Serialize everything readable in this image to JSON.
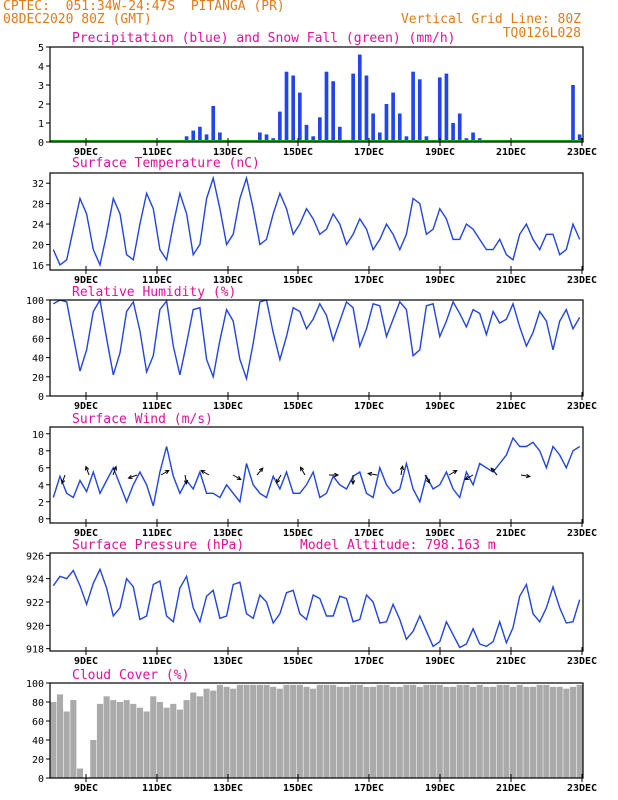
{
  "header": {
    "line1": "CPTEC:  051:34W-24:47S  PITANGA (PR)",
    "line2": "08DEC2020 80Z (GMT)",
    "right1": "Vertical Grid Line: 80Z",
    "right2": "TQ0126L028"
  },
  "colors": {
    "header_text": "#e07b1a",
    "panel_title": "#e0109a",
    "line": "#2244dd",
    "precip": "#2244ee",
    "snow": "#00aa00",
    "cloud": "#aaaaaa"
  },
  "x_ticks": [
    "9DEC",
    "11DEC",
    "13DEC",
    "15DEC",
    "17DEC",
    "19DEC",
    "21DEC",
    "23DEC"
  ],
  "chart_data": [
    {
      "type": "bar",
      "title": "Precipitation (blue) and Snow Fall (green) (mm/h)",
      "ylim": [
        0,
        5
      ],
      "yticks": [
        0,
        1,
        2,
        3,
        4,
        5
      ],
      "x_start": "2020-12-08T08:00Z",
      "x_step_hours": 6,
      "series": [
        {
          "name": "Precipitation",
          "values": [
            0,
            0,
            0,
            0,
            0,
            0,
            0,
            0.1,
            0,
            0,
            0,
            0,
            0,
            0,
            0,
            0,
            0,
            0,
            0,
            0,
            0.3,
            0.6,
            0.8,
            0.4,
            1.9,
            0.5,
            0,
            0,
            0,
            0,
            0,
            0.5,
            0.4,
            0.2,
            1.6,
            3.7,
            3.5,
            2.6,
            0.9,
            0.3,
            1.3,
            3.7,
            3.2,
            0.8,
            0.1,
            3.6,
            4.6,
            3.5,
            1.5,
            0.5,
            2.0,
            2.6,
            1.5,
            0.3,
            3.7,
            3.3,
            0.3,
            0.1,
            3.4,
            3.6,
            1.0,
            1.5,
            0.2,
            0.5,
            0.2,
            0,
            0,
            0,
            0,
            0.1,
            0,
            0,
            0,
            0,
            0,
            0,
            0,
            0,
            3.0,
            0.4
          ]
        },
        {
          "name": "Snow Fall",
          "values": [
            0,
            0,
            0,
            0,
            0,
            0,
            0,
            0,
            0,
            0,
            0,
            0,
            0,
            0,
            0,
            0,
            0,
            0,
            0,
            0,
            0,
            0,
            0,
            0,
            0,
            0,
            0,
            0,
            0,
            0,
            0,
            0,
            0,
            0,
            0,
            0,
            0,
            0,
            0,
            0,
            0,
            0,
            0,
            0,
            0,
            0,
            0,
            0,
            0,
            0,
            0,
            0,
            0,
            0,
            0,
            0,
            0,
            0,
            0,
            0,
            0,
            0,
            0,
            0,
            0,
            0,
            0,
            0,
            0,
            0,
            0,
            0,
            0,
            0,
            0,
            0,
            0,
            0,
            0,
            0
          ]
        }
      ]
    },
    {
      "type": "line",
      "title": "Surface Temperature (nC)",
      "ylim": [
        15,
        34
      ],
      "yticks": [
        16,
        20,
        24,
        28,
        32
      ],
      "x_start": "2020-12-08T08:00Z",
      "x_step_hours": 6,
      "values": [
        19,
        16,
        17,
        23,
        29,
        26,
        19,
        16,
        22,
        29,
        26,
        18,
        17,
        24,
        30,
        27,
        19,
        17,
        24,
        30,
        26,
        18,
        20,
        29,
        33,
        27,
        20,
        22,
        29,
        33,
        27,
        20,
        21,
        26,
        30,
        27,
        22,
        24,
        27,
        25,
        22,
        23,
        26,
        24,
        20,
        22,
        25,
        23,
        19,
        21,
        24,
        22,
        19,
        22,
        29,
        28,
        22,
        23,
        27,
        25,
        21,
        21,
        24,
        23,
        21,
        19,
        19,
        21,
        18,
        17,
        22,
        24,
        21,
        19,
        22,
        22,
        18,
        19,
        24,
        21
      ]
    },
    {
      "type": "line",
      "title": "Relative Humidity (%)",
      "ylim": [
        0,
        100
      ],
      "yticks": [
        0,
        20,
        40,
        60,
        80,
        100
      ],
      "x_start": "2020-12-08T08:00Z",
      "x_step_hours": 6,
      "values": [
        96,
        100,
        98,
        62,
        26,
        48,
        88,
        100,
        60,
        22,
        45,
        88,
        98,
        68,
        25,
        42,
        90,
        99,
        52,
        22,
        55,
        90,
        92,
        38,
        20,
        58,
        90,
        78,
        38,
        18,
        55,
        98,
        100,
        66,
        38,
        62,
        92,
        88,
        70,
        80,
        96,
        84,
        58,
        78,
        98,
        92,
        52,
        70,
        96,
        94,
        62,
        80,
        98,
        90,
        42,
        48,
        94,
        96,
        62,
        78,
        98,
        86,
        72,
        90,
        86,
        64,
        88,
        76,
        80,
        96,
        72,
        52,
        66,
        88,
        78,
        48,
        78,
        90,
        70,
        82
      ]
    },
    {
      "type": "line",
      "title": "Surface Wind (m/s)",
      "ylim": [
        -0.5,
        10.8
      ],
      "yticks": [
        0,
        2,
        4,
        6,
        8,
        10
      ],
      "x_start": "2020-12-08T08:00Z",
      "x_step_hours": 6,
      "values": [
        2.5,
        5.0,
        3.0,
        2.5,
        4.5,
        3.2,
        5.5,
        3.0,
        4.5,
        6.0,
        4.0,
        2.0,
        4.0,
        5.5,
        4.0,
        1.5,
        5.5,
        8.5,
        5.0,
        3.0,
        4.5,
        3.5,
        5.5,
        3.0,
        3.0,
        2.5,
        4.0,
        3.0,
        2.0,
        6.5,
        4.0,
        3.0,
        2.5,
        5.0,
        3.5,
        5.5,
        3.0,
        3.0,
        4.0,
        5.5,
        2.5,
        3.0,
        5.0,
        4.0,
        3.5,
        5.0,
        5.5,
        3.0,
        2.5,
        6.0,
        4.0,
        3.0,
        3.5,
        6.5,
        3.5,
        2.0,
        5.0,
        3.5,
        4.0,
        5.5,
        3.5,
        2.5,
        5.5,
        4.0,
        6.5,
        6.0,
        5.5,
        6.5,
        7.5,
        9.5,
        8.5,
        8.5,
        9.0,
        8.0,
        6.0,
        8.5,
        7.5,
        6.0,
        8.0,
        8.5
      ]
    },
    {
      "type": "line",
      "title": "Surface Pressure (hPa)",
      "annotation": "Model Altitude: 798.163 m",
      "ylim": [
        917.8,
        926.2
      ],
      "yticks": [
        918,
        920,
        922,
        924,
        926
      ],
      "x_start": "2020-12-08T08:00Z",
      "x_step_hours": 6,
      "values": [
        923.4,
        924.2,
        924.0,
        924.7,
        923.4,
        921.8,
        923.6,
        924.8,
        923.2,
        920.8,
        921.5,
        924.0,
        923.3,
        920.5,
        920.8,
        923.5,
        923.8,
        920.8,
        920.3,
        923.2,
        924.2,
        921.5,
        920.3,
        922.5,
        923.0,
        920.6,
        920.8,
        923.5,
        923.7,
        921.0,
        920.6,
        922.6,
        922.0,
        920.2,
        921.0,
        922.8,
        923.0,
        921.0,
        920.5,
        922.6,
        922.3,
        920.8,
        920.8,
        922.5,
        922.3,
        920.3,
        920.5,
        922.6,
        922.0,
        920.2,
        920.3,
        921.8,
        920.5,
        918.8,
        919.5,
        920.8,
        919.5,
        918.2,
        918.6,
        920.3,
        919.2,
        918.1,
        918.4,
        919.7,
        918.4,
        918.2,
        918.6,
        920.3,
        918.5,
        919.8,
        922.5,
        923.5,
        921.0,
        920.3,
        921.5,
        923.3,
        921.5,
        920.2,
        920.3,
        922.2
      ]
    },
    {
      "type": "bar",
      "title": "Cloud Cover (%)",
      "ylim": [
        0,
        100
      ],
      "yticks": [
        0,
        20,
        40,
        60,
        80,
        100
      ],
      "x_start": "2020-12-08T08:00Z",
      "x_step_hours": 6,
      "values": [
        80,
        88,
        70,
        82,
        10,
        0,
        40,
        78,
        86,
        82,
        80,
        82,
        78,
        74,
        70,
        86,
        80,
        74,
        78,
        72,
        82,
        90,
        86,
        94,
        92,
        98,
        96,
        94,
        98,
        98,
        98,
        98,
        98,
        96,
        94,
        98,
        98,
        98,
        96,
        94,
        98,
        98,
        98,
        96,
        96,
        98,
        98,
        96,
        96,
        98,
        98,
        96,
        96,
        98,
        98,
        96,
        98,
        98,
        98,
        96,
        96,
        98,
        98,
        96,
        98,
        96,
        96,
        98,
        98,
        96,
        98,
        96,
        96,
        98,
        98,
        96,
        96,
        94,
        96,
        98
      ]
    }
  ]
}
